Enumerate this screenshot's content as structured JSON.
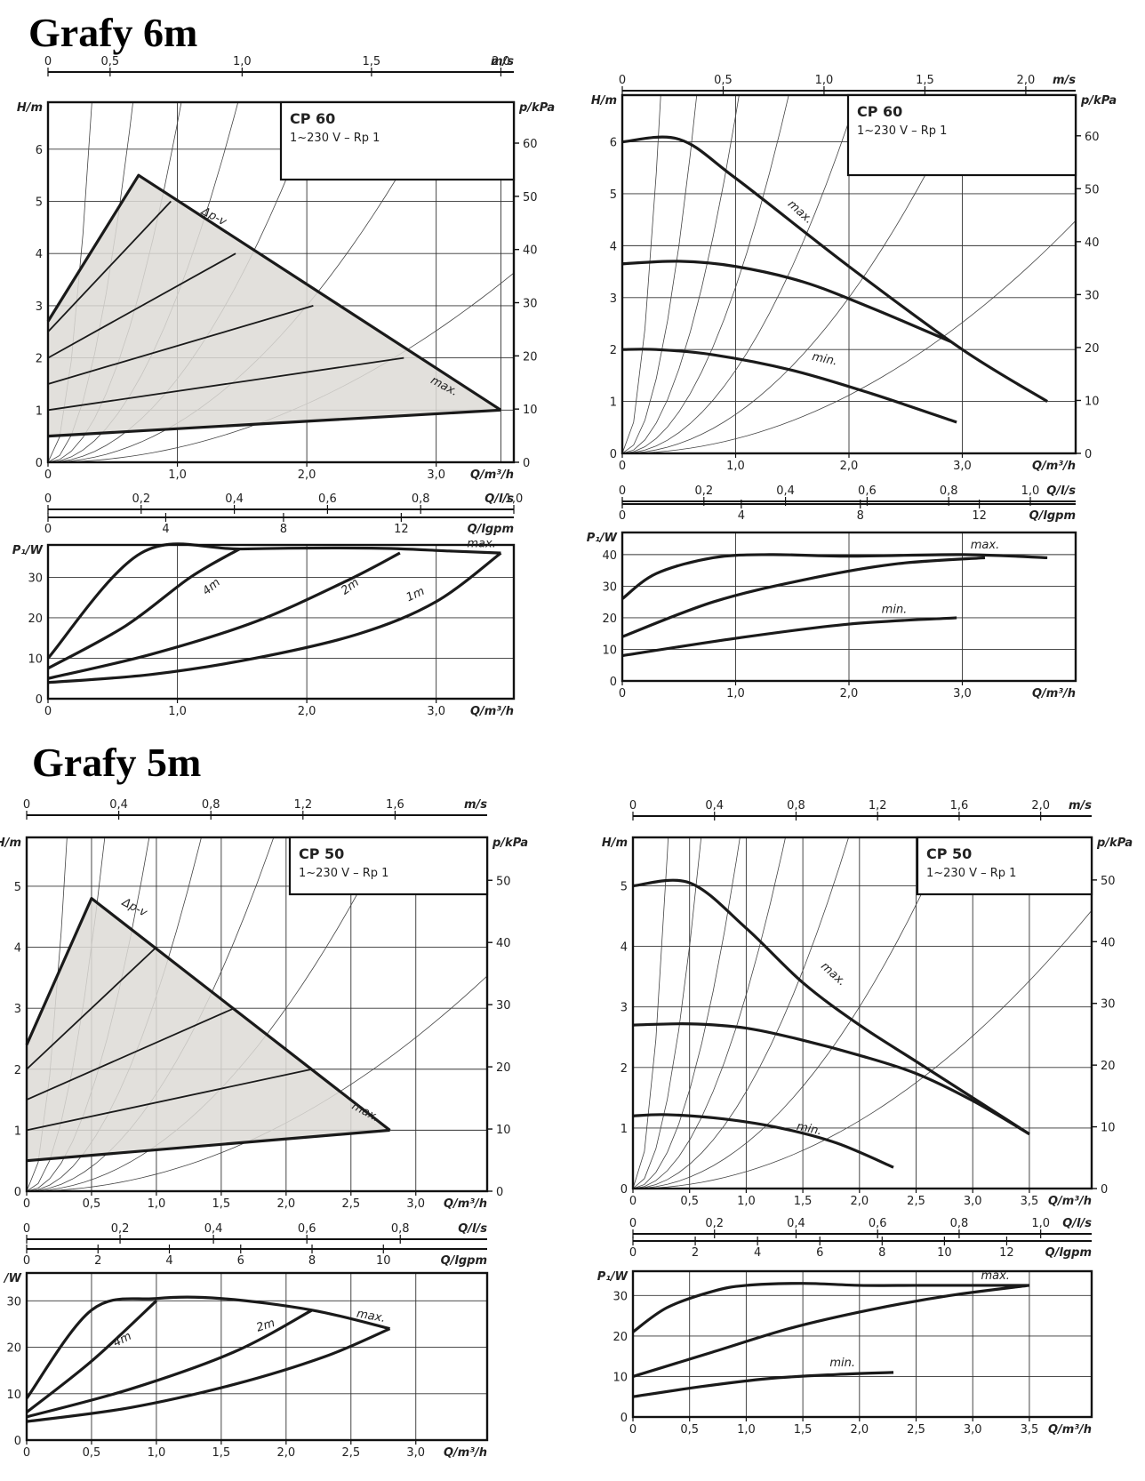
{
  "sections": [
    {
      "title": "Grafy 6m"
    },
    {
      "title": "Grafy 5m"
    }
  ],
  "chart_data": [
    {
      "id": "cp60-dpv-head",
      "type": "line",
      "model": "CP 60",
      "subtitle": "1~230 V – Rp 1",
      "xlabel": "Q/m³/h",
      "ylabel": "H/m",
      "y2label": "p/kPa",
      "xlim": [
        0,
        3.6
      ],
      "ylim": [
        0,
        6.9
      ],
      "xticks": [
        "0",
        "1,0",
        "2,0",
        "3,0"
      ],
      "yticks": [
        "0",
        "1",
        "2",
        "3",
        "4",
        "5",
        "6"
      ],
      "y2ticks": [
        "0",
        "10",
        "20",
        "30",
        "40",
        "50",
        "60"
      ],
      "aux_axes": [
        {
          "label": "m/s",
          "ticks": [
            "0",
            "0,5",
            "1,0",
            "1,5",
            "2,0"
          ]
        },
        {
          "label": "Q/l/s",
          "ticks": [
            "0",
            "0,2",
            "0,4",
            "0,6",
            "0,8",
            "1,0"
          ]
        },
        {
          "label": "Q/lgpm",
          "ticks": [
            "0",
            "4",
            "8",
            "12"
          ]
        }
      ],
      "annotations": [
        "Δp-v",
        "max."
      ],
      "region": {
        "name": "Δp-v",
        "x": [
          0,
          0.7,
          3.5,
          0
        ],
        "y": [
          2.7,
          5.5,
          1.0,
          0.5
        ]
      },
      "series": [
        {
          "x": [
            0,
            0.7,
            3.5
          ],
          "y": [
            2.7,
            5.5,
            1.0
          ]
        },
        {
          "x": [
            0,
            3.5
          ],
          "y": [
            0.5,
            1.0
          ]
        },
        {
          "x": [
            0,
            0.95
          ],
          "y": [
            2.5,
            5.0
          ]
        },
        {
          "x": [
            0,
            1.45
          ],
          "y": [
            2.0,
            4.0
          ]
        },
        {
          "x": [
            0,
            2.05
          ],
          "y": [
            1.5,
            3.0
          ]
        },
        {
          "x": [
            0,
            2.75
          ],
          "y": [
            1.0,
            2.0
          ]
        }
      ],
      "grid": true
    },
    {
      "id": "cp60-dpv-power",
      "type": "line",
      "xlabel": "Q/m³/h",
      "ylabel": "P₁/W",
      "xlim": [
        0,
        3.6
      ],
      "ylim": [
        0,
        38
      ],
      "xticks": [
        "0",
        "1,0",
        "2,0",
        "3,0"
      ],
      "yticks": [
        "0",
        "10",
        "20",
        "30"
      ],
      "annotations": [
        "max.",
        "4m",
        "2m",
        "1m"
      ],
      "series": [
        {
          "name": "max.",
          "x": [
            0,
            0.72,
            1.5,
            2.5,
            3.1,
            3.5
          ],
          "y": [
            10,
            36,
            37,
            37.2,
            36.5,
            36
          ]
        },
        {
          "name": "4m",
          "x": [
            0,
            0.6,
            1.1,
            1.48
          ],
          "y": [
            7.5,
            18,
            30,
            37
          ]
        },
        {
          "name": "2m",
          "x": [
            0,
            0.8,
            1.6,
            2.3,
            2.72
          ],
          "y": [
            5,
            11,
            19,
            29,
            36
          ]
        },
        {
          "name": "1m",
          "x": [
            0,
            0.8,
            1.6,
            2.4,
            3.0,
            3.5
          ],
          "y": [
            4,
            6,
            10,
            16,
            24,
            36
          ]
        }
      ],
      "grid": true
    },
    {
      "id": "cp60-const-head",
      "type": "line",
      "model": "CP 60",
      "subtitle": "1~230 V – Rp 1",
      "xlabel": "Q/m³/h",
      "ylabel": "H/m",
      "y2label": "p/kPa",
      "xlim": [
        0,
        4.0
      ],
      "ylim": [
        0,
        6.9
      ],
      "xticks": [
        "0",
        "1,0",
        "2,0",
        "3,0"
      ],
      "yticks": [
        "0",
        "1",
        "2",
        "3",
        "4",
        "5",
        "6"
      ],
      "y2ticks": [
        "0",
        "10",
        "20",
        "30",
        "40",
        "50",
        "60"
      ],
      "aux_axes": [
        {
          "label": "m/s",
          "ticks": [
            "0",
            "0,5",
            "1,0",
            "1,5",
            "2,0"
          ]
        },
        {
          "label": "Q/l/s",
          "ticks": [
            "0",
            "0,2",
            "0,4",
            "0,6",
            "0,8",
            "1,0"
          ]
        },
        {
          "label": "Q/lgpm",
          "ticks": [
            "0",
            "4",
            "8",
            "12"
          ]
        }
      ],
      "annotations": [
        "max.",
        "min."
      ],
      "series": [
        {
          "name": "max.",
          "x": [
            0,
            0.5,
            1.0,
            2.0,
            3.0,
            3.75
          ],
          "y": [
            6.0,
            6.05,
            5.3,
            3.6,
            2.0,
            1.0
          ]
        },
        {
          "x": [
            0,
            0.5,
            1.0,
            1.6,
            2.2,
            2.9
          ],
          "y": [
            3.65,
            3.7,
            3.6,
            3.3,
            2.8,
            2.15
          ]
        },
        {
          "name": "min.",
          "x": [
            0,
            0.3,
            0.8,
            1.5,
            2.2,
            2.95
          ],
          "y": [
            2.0,
            2.0,
            1.9,
            1.6,
            1.15,
            0.6
          ]
        }
      ],
      "grid": true
    },
    {
      "id": "cp60-const-power",
      "type": "line",
      "xlabel": "Q/m³/h",
      "ylabel": "P₁/W",
      "xlim": [
        0,
        4.0
      ],
      "ylim": [
        0,
        47
      ],
      "xticks": [
        "0",
        "1,0",
        "2,0",
        "3,0"
      ],
      "yticks": [
        "0",
        "10",
        "20",
        "30",
        "40"
      ],
      "annotations": [
        "max.",
        "min."
      ],
      "series": [
        {
          "name": "max.",
          "x": [
            0,
            0.3,
            0.8,
            1.3,
            2.0,
            3.0,
            3.75
          ],
          "y": [
            26,
            34,
            39,
            40,
            39.5,
            40,
            39
          ]
        },
        {
          "x": [
            0,
            0.8,
            1.6,
            2.4,
            3.2
          ],
          "y": [
            14,
            25,
            32,
            37,
            39
          ]
        },
        {
          "name": "min.",
          "x": [
            0,
            1.0,
            2.0,
            2.95
          ],
          "y": [
            8,
            13.5,
            18,
            20
          ]
        }
      ],
      "grid": true
    },
    {
      "id": "cp50-dpv-head",
      "type": "line",
      "model": "CP 50",
      "subtitle": "1~230 V – Rp 1",
      "xlabel": "Q/m³/h",
      "ylabel": "H/m",
      "y2label": "p/kPa",
      "xlim": [
        0,
        3.55
      ],
      "ylim": [
        0,
        5.8
      ],
      "xticks": [
        "0",
        "0,5",
        "1,0",
        "1,5",
        "2,0",
        "2,5",
        "3,0"
      ],
      "yticks": [
        "0",
        "1",
        "2",
        "3",
        "4",
        "5"
      ],
      "y2ticks": [
        "0",
        "10",
        "20",
        "30",
        "40",
        "50"
      ],
      "aux_axes": [
        {
          "label": "m/s",
          "ticks": [
            "0",
            "0,4",
            "0,8",
            "1,2",
            "1,6"
          ]
        },
        {
          "label": "Q/l/s",
          "ticks": [
            "0",
            "0,2",
            "0,4",
            "0,6",
            "0,8"
          ]
        },
        {
          "label": "Q/lgpm",
          "ticks": [
            "0",
            "2",
            "4",
            "6",
            "8",
            "10"
          ]
        }
      ],
      "annotations": [
        "Δp-v",
        "max."
      ],
      "region": {
        "name": "Δp-v",
        "x": [
          0,
          0.5,
          2.8,
          0
        ],
        "y": [
          2.4,
          4.8,
          1.0,
          0.5
        ]
      },
      "series": [
        {
          "x": [
            0,
            0.5,
            2.8
          ],
          "y": [
            2.4,
            4.8,
            1.0
          ]
        },
        {
          "x": [
            0,
            2.8
          ],
          "y": [
            0.5,
            1.0
          ]
        },
        {
          "x": [
            0,
            1.0
          ],
          "y": [
            2.0,
            4.0
          ]
        },
        {
          "x": [
            0,
            1.6
          ],
          "y": [
            1.5,
            3.0
          ]
        },
        {
          "x": [
            0,
            2.2
          ],
          "y": [
            1.0,
            2.0
          ]
        }
      ],
      "grid": true
    },
    {
      "id": "cp50-dpv-power",
      "type": "line",
      "ylabel": "/W",
      "xlabel": "Q/m³/h",
      "xlim": [
        0,
        3.55
      ],
      "ylim": [
        0,
        36
      ],
      "xticks": [
        "0",
        "0,5",
        "1,0",
        "1,5",
        "2,0",
        "2,5",
        "3,0"
      ],
      "yticks": [
        "0",
        "10",
        "20",
        "30"
      ],
      "annotations": [
        "max.",
        "4m",
        "2m"
      ],
      "series": [
        {
          "name": "max.",
          "x": [
            0,
            0.5,
            1.0,
            1.5,
            2.2,
            2.8
          ],
          "y": [
            9,
            28,
            30.5,
            30.5,
            28,
            24
          ]
        },
        {
          "name": "4m",
          "x": [
            0,
            0.5,
            1.0
          ],
          "y": [
            6,
            17,
            30
          ]
        },
        {
          "name": "2m",
          "x": [
            0,
            0.8,
            1.6,
            2.2
          ],
          "y": [
            5,
            11,
            19,
            28
          ]
        },
        {
          "x": [
            0,
            0.8,
            1.6,
            2.3,
            2.8
          ],
          "y": [
            4,
            7,
            12,
            18,
            24
          ]
        }
      ],
      "grid": true
    },
    {
      "id": "cp50-const-head",
      "type": "line",
      "model": "CP 50",
      "subtitle": "1~230 V – Rp 1",
      "xlabel": "Q/m³/h",
      "ylabel": "H/m",
      "y2label": "p/kPa",
      "xlim": [
        0,
        4.05
      ],
      "ylim": [
        0,
        5.8
      ],
      "xticks": [
        "0",
        "0,5",
        "1,0",
        "1,5",
        "2,0",
        "2,5",
        "3,0",
        "3,5"
      ],
      "yticks": [
        "0",
        "1",
        "2",
        "3",
        "4",
        "5"
      ],
      "y2ticks": [
        "0",
        "10",
        "20",
        "30",
        "40",
        "50"
      ],
      "aux_axes": [
        {
          "label": "m/s",
          "ticks": [
            "0",
            "0,4",
            "0,8",
            "1,2",
            "1,6",
            "2,0"
          ]
        },
        {
          "label": "Q/l/s",
          "ticks": [
            "0",
            "0,2",
            "0,4",
            "0,6",
            "0,8",
            "1,0"
          ]
        },
        {
          "label": "Q/lgpm",
          "ticks": [
            "0",
            "2",
            "4",
            "6",
            "8",
            "10",
            "12"
          ]
        }
      ],
      "annotations": [
        "max.",
        "min."
      ],
      "series": [
        {
          "name": "max.",
          "x": [
            0,
            0.5,
            1.0,
            1.5,
            2.0,
            2.5,
            3.0,
            3.5
          ],
          "y": [
            5.0,
            5.05,
            4.3,
            3.4,
            2.7,
            2.1,
            1.5,
            0.9
          ]
        },
        {
          "x": [
            0,
            0.5,
            1.0,
            1.5,
            2.0,
            2.5,
            3.0,
            3.5
          ],
          "y": [
            2.7,
            2.72,
            2.65,
            2.45,
            2.2,
            1.9,
            1.45,
            0.9
          ]
        },
        {
          "name": "min.",
          "x": [
            0,
            0.3,
            0.8,
            1.3,
            1.8,
            2.3
          ],
          "y": [
            1.2,
            1.22,
            1.15,
            1.0,
            0.75,
            0.35
          ]
        }
      ],
      "grid": true
    },
    {
      "id": "cp50-const-power",
      "type": "line",
      "xlabel": "Q/m³/h",
      "ylabel": "P₁/W",
      "xlim": [
        0,
        4.05
      ],
      "ylim": [
        0,
        36
      ],
      "xticks": [
        "0",
        "0,5",
        "1,0",
        "1,5",
        "2,0",
        "2,5",
        "3,0",
        "3,5"
      ],
      "yticks": [
        "0",
        "10",
        "20",
        "30"
      ],
      "annotations": [
        "max.",
        "min."
      ],
      "series": [
        {
          "name": "max.",
          "x": [
            0,
            0.3,
            0.7,
            1.0,
            1.5,
            2.0,
            2.5,
            3.0,
            3.5
          ],
          "y": [
            21,
            27,
            31,
            32.5,
            33,
            32.5,
            32.5,
            32.5,
            32.5
          ]
        },
        {
          "x": [
            0,
            0.7,
            1.4,
            2.1,
            2.8,
            3.5
          ],
          "y": [
            10,
            16,
            22,
            26.5,
            30,
            32.5
          ]
        },
        {
          "name": "min.",
          "x": [
            0,
            0.6,
            1.2,
            1.8,
            2.3
          ],
          "y": [
            5,
            7.5,
            9.5,
            10.5,
            11
          ]
        }
      ],
      "grid": true
    }
  ]
}
